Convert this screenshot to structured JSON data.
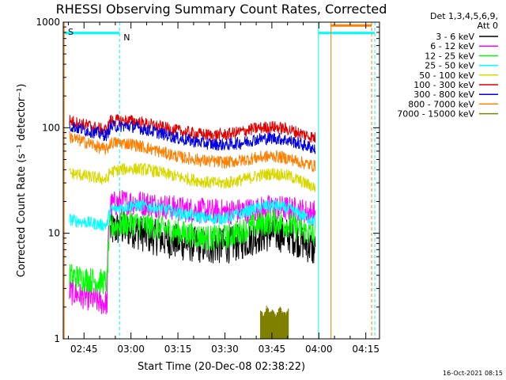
{
  "chart_data": {
    "type": "line",
    "title": "RHESSI Observing Summary Count Rates, Corrected",
    "xlabel": "Start Time (20-Dec-08 02:38:22)",
    "ylabel": "Corrected Count Rate (s⁻¹ detector⁻¹)",
    "yscale": "log",
    "ylim": [
      1,
      1000
    ],
    "xlim_minutes": [
      0,
      101
    ],
    "x_tick_labels": [
      "02:45",
      "03:00",
      "03:15",
      "03:30",
      "03:45",
      "04:00",
      "04:15"
    ],
    "x_tick_minutes": [
      6.63,
      21.63,
      36.63,
      51.63,
      66.63,
      81.63,
      96.63
    ],
    "y_tick_labels": [
      "1",
      "10",
      "100",
      "1000"
    ],
    "y_tick_values": [
      1,
      10,
      100,
      1000
    ],
    "legend_header": [
      "Det 1,3,4,5,6,9,",
      "Att 0"
    ],
    "legend_placement": "outside-right",
    "grid": false,
    "flags": [
      {
        "label": "S",
        "color": "#ff8000"
      },
      {
        "label": "N",
        "color": "#00ffff"
      }
    ],
    "footer_date": "16-Oct-2021 08:15",
    "series": [
      {
        "name": "3 - 6 keV",
        "color": "#000000",
        "x": [
          2,
          5,
          9,
          12,
          14,
          15,
          18,
          22,
          27,
          32,
          37,
          42,
          47,
          52,
          57,
          62,
          67,
          72,
          77,
          80.5
        ],
        "values": [
          null,
          null,
          null,
          null,
          null,
          10.5,
          11.2,
          10.8,
          9.5,
          8.8,
          8.2,
          7.8,
          7.5,
          7.6,
          8.3,
          9.5,
          10.0,
          9.5,
          8.2,
          6.8
        ]
      },
      {
        "name": "6 - 12 keV",
        "color": "#ff00ff",
        "x": [
          2,
          5,
          9,
          12,
          14,
          15,
          18,
          22,
          27,
          32,
          37,
          42,
          47,
          52,
          57,
          62,
          67,
          72,
          77,
          80.5
        ],
        "values": [
          2.8,
          2.6,
          2.4,
          2.2,
          2.2,
          18.5,
          19.5,
          19.8,
          19.0,
          18.0,
          17.0,
          16.5,
          16.0,
          16.0,
          16.2,
          16.8,
          17.5,
          17.0,
          16.0,
          15.5
        ]
      },
      {
        "name": "12 - 25 keV",
        "color": "#00ff00",
        "x": [
          2,
          5,
          9,
          12,
          14,
          15,
          18,
          22,
          27,
          32,
          37,
          42,
          47,
          52,
          57,
          62,
          67,
          72,
          77,
          80.5
        ],
        "values": [
          4.0,
          3.8,
          3.6,
          3.5,
          3.4,
          11.5,
          12.0,
          12.5,
          11.8,
          11.0,
          10.2,
          9.5,
          9.0,
          9.2,
          10.5,
          12.0,
          13.0,
          12.0,
          10.5,
          9.5
        ]
      },
      {
        "name": "25 - 50 keV",
        "color": "#00ffff",
        "x": [
          2,
          5,
          9,
          12,
          14,
          15,
          18,
          22,
          27,
          32,
          37,
          42,
          47,
          52,
          57,
          62,
          67,
          72,
          77,
          80.5
        ],
        "values": [
          13.5,
          13.0,
          12.5,
          12.0,
          12.0,
          16.5,
          17.5,
          18.5,
          18.0,
          17.0,
          15.5,
          14.5,
          13.8,
          14.0,
          15.5,
          17.5,
          18.5,
          17.0,
          14.5,
          13.0
        ]
      },
      {
        "name": "50 - 100 keV",
        "color": "#d8d800",
        "x": [
          2,
          5,
          9,
          12,
          14,
          15,
          18,
          22,
          27,
          32,
          37,
          42,
          47,
          52,
          57,
          62,
          67,
          72,
          77,
          80.5
        ],
        "values": [
          37,
          36,
          34,
          33,
          32,
          38,
          40,
          41,
          40,
          37,
          34,
          32,
          30,
          30,
          32,
          35,
          37,
          35,
          30,
          27
        ]
      },
      {
        "name": "100 - 300 keV",
        "color": "#e00000",
        "x": [
          2,
          5,
          9,
          12,
          14,
          15,
          18,
          22,
          27,
          32,
          37,
          42,
          47,
          52,
          57,
          62,
          67,
          72,
          77,
          80.5
        ],
        "values": [
          117,
          110,
          103,
          97,
          95,
          117,
          117,
          116,
          108,
          100,
          93,
          88,
          85,
          86,
          92,
          99,
          102,
          96,
          86,
          80
        ]
      },
      {
        "name": "300 - 800 keV",
        "color": "#0000e0",
        "x": [
          2,
          5,
          9,
          12,
          14,
          15,
          18,
          22,
          27,
          32,
          37,
          42,
          47,
          52,
          57,
          62,
          67,
          72,
          77,
          80.5
        ],
        "values": [
          105,
          98,
          92,
          87,
          85,
          102,
          104,
          103,
          95,
          87,
          79,
          74,
          70,
          69,
          72,
          78,
          80,
          76,
          68,
          63
        ]
      },
      {
        "name": "800 - 7000 keV",
        "color": "#ff8000",
        "x": [
          2,
          5,
          9,
          12,
          14,
          15,
          18,
          22,
          27,
          32,
          37,
          42,
          47,
          52,
          57,
          62,
          67,
          72,
          77,
          80.5
        ],
        "values": [
          82,
          76,
          70,
          64,
          62,
          72,
          72,
          70,
          64,
          58,
          53,
          50,
          48,
          47,
          49,
          52,
          54,
          51,
          46,
          43
        ]
      },
      {
        "name": "7000 - 15000 keV",
        "color": "#808000",
        "x": [
          63,
          64,
          65,
          66,
          67,
          68,
          69,
          70,
          71,
          72
        ],
        "values": [
          1.9,
          1.6,
          2.0,
          1.7,
          1.9,
          1.6,
          2.0,
          1.8,
          1.7,
          1.9
        ]
      }
    ]
  }
}
